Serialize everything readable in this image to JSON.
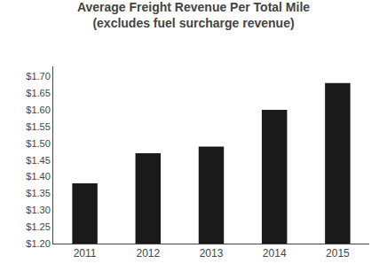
{
  "chart_data": {
    "type": "bar",
    "title": "Average Freight Revenue Per Total Mile",
    "subtitle": "(excludes fuel surcharge revenue)",
    "categories": [
      "2011",
      "2012",
      "2013",
      "2014",
      "2015"
    ],
    "values": [
      1.38,
      1.47,
      1.49,
      1.6,
      1.68
    ],
    "color": "#1a1a1a",
    "ylim": [
      1.2,
      1.73
    ],
    "yticks": [
      {
        "value": 1.2,
        "label": "$1.20"
      },
      {
        "value": 1.25,
        "label": "$1.25"
      },
      {
        "value": 1.3,
        "label": "$1.30"
      },
      {
        "value": 1.35,
        "label": "$1.35"
      },
      {
        "value": 1.4,
        "label": "$1.40"
      },
      {
        "value": 1.45,
        "label": "$1.45"
      },
      {
        "value": 1.5,
        "label": "$1.50"
      },
      {
        "value": 1.55,
        "label": "$1.55"
      },
      {
        "value": 1.6,
        "label": "$1.60"
      },
      {
        "value": 1.65,
        "label": "$1.65"
      },
      {
        "value": 1.7,
        "label": "$1.70"
      }
    ],
    "grid": false
  }
}
